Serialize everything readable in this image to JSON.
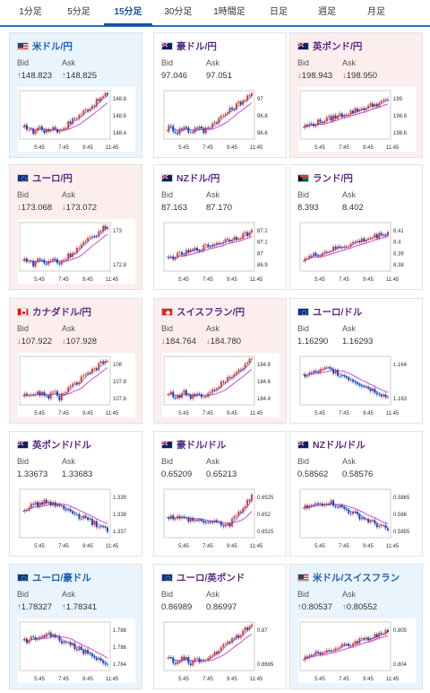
{
  "tabs": [
    {
      "label": "1分足",
      "active": false
    },
    {
      "label": "5分足",
      "active": false
    },
    {
      "label": "15分足",
      "active": true
    },
    {
      "label": "30分足",
      "active": false
    },
    {
      "label": "1時間足",
      "active": false
    },
    {
      "label": "日足",
      "active": false
    },
    {
      "label": "週足",
      "active": false
    },
    {
      "label": "月足",
      "active": false
    }
  ],
  "labels": {
    "bid": "Bid",
    "ask": "Ask"
  },
  "colors": {
    "up_arrow": "#1e88e5",
    "down_arrow": "#e53935",
    "candle_up": "#e53935",
    "candle_down": "#1a47b8",
    "ma1": "#d04ad0",
    "ma2": "#3aa0ff"
  },
  "x_ticks": [
    "5:45",
    "7:45",
    "9:45",
    "11:45"
  ],
  "pairs": [
    {
      "name": "米ドル/円",
      "flag": "us-jp",
      "trend": "up",
      "bid": "148.823",
      "ask": "148.825",
      "y_ticks": [
        "148.8",
        "148.6",
        "148.4"
      ],
      "shape": "rise_late"
    },
    {
      "name": "豪ドル/円",
      "flag": "au-jp",
      "trend": "flat",
      "bid": "97.046",
      "ask": "97.051",
      "y_ticks": [
        "97",
        "96.8",
        "96.6"
      ],
      "shape": "rise_late"
    },
    {
      "name": "英ポンド/円",
      "flag": "gb-jp",
      "trend": "down",
      "bid": "198.943",
      "ask": "198.950",
      "y_ticks": [
        "199",
        "198.8",
        "198.6"
      ],
      "shape": "rise_mid"
    },
    {
      "name": "ユーロ/円",
      "flag": "eu-jp",
      "trend": "down",
      "bid": "173.068",
      "ask": "173.072",
      "y_ticks": [
        "173",
        "172.8"
      ],
      "shape": "rise_late"
    },
    {
      "name": "NZドル/円",
      "flag": "nz-jp",
      "trend": "flat",
      "bid": "87.163",
      "ask": "87.170",
      "y_ticks": [
        "87.2",
        "87.1",
        "87",
        "86.9"
      ],
      "shape": "rise_mid"
    },
    {
      "name": "ランド/円",
      "flag": "za-jp",
      "trend": "flat",
      "bid": "8.393",
      "ask": "8.402",
      "y_ticks": [
        "8.41",
        "8.4",
        "8.39",
        "8.38"
      ],
      "shape": "rise_mid"
    },
    {
      "name": "カナダドル/円",
      "flag": "ca-jp",
      "trend": "down",
      "bid": "107.922",
      "ask": "107.928",
      "y_ticks": [
        "108",
        "107.8",
        "107.6"
      ],
      "shape": "rise_late"
    },
    {
      "name": "スイスフラン/円",
      "flag": "ch-jp",
      "trend": "down",
      "bid": "184.764",
      "ask": "184.780",
      "y_ticks": [
        "184.8",
        "184.6",
        "184.4"
      ],
      "shape": "rise_late"
    },
    {
      "name": "ユーロ/ドル",
      "flag": "eu-us",
      "trend": "flat",
      "bid": "1.16290",
      "ask": "1.16293",
      "y_ticks": [
        "1.164",
        "1.163"
      ],
      "shape": "fall"
    },
    {
      "name": "英ポンド/ドル",
      "flag": "gb-us",
      "trend": "flat",
      "bid": "1.33673",
      "ask": "1.33683",
      "y_ticks": [
        "1.339",
        "1.338",
        "1.337"
      ],
      "shape": "fall"
    },
    {
      "name": "豪ドル/ドル",
      "flag": "au-us",
      "trend": "flat",
      "bid": "0.65209",
      "ask": "0.65213",
      "y_ticks": [
        "0.6525",
        "0.652",
        "0.6515"
      ],
      "shape": "dip_spike"
    },
    {
      "name": "NZドル/ドル",
      "flag": "nz-us",
      "trend": "flat",
      "bid": "0.58562",
      "ask": "0.58576",
      "y_ticks": [
        "0.5865",
        "0.586",
        "0.5855"
      ],
      "shape": "fall"
    },
    {
      "name": "ユーロ/豪ドル",
      "flag": "eu-au",
      "trend": "up",
      "bid": "1.78327",
      "ask": "1.78341",
      "y_ticks": [
        "1.788",
        "1.786",
        "1.784"
      ],
      "shape": "fall"
    },
    {
      "name": "ユーロ/英ポンド",
      "flag": "eu-gb",
      "trend": "flat",
      "bid": "0.86989",
      "ask": "0.86997",
      "y_ticks": [
        "0.87",
        "0.8695"
      ],
      "shape": "rise_late"
    },
    {
      "name": "米ドル/スイスフラン",
      "flag": "us-ch",
      "trend": "up",
      "bid": "0.80537",
      "ask": "0.80552",
      "y_ticks": [
        "0.805",
        "0.804"
      ],
      "shape": "rise_mid"
    }
  ]
}
